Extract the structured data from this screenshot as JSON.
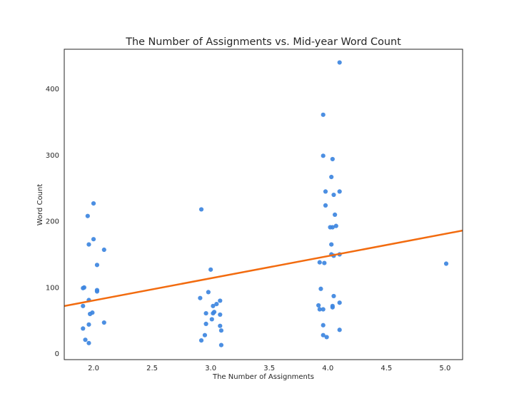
{
  "chart_data": {
    "type": "scatter",
    "title": "The Number of Assignments vs. Mid-year Word Count",
    "xlabel": "The Number of Assignments",
    "ylabel": "Word Count",
    "xlim": [
      1.75,
      5.15
    ],
    "ylim": [
      -9,
      460
    ],
    "xticks": [
      2.0,
      2.5,
      3.0,
      3.5,
      4.0,
      4.5,
      5.0
    ],
    "xtick_labels": [
      "2.0",
      "2.5",
      "3.0",
      "3.5",
      "4.0",
      "4.5",
      "5.0"
    ],
    "yticks": [
      0,
      100,
      200,
      300,
      400
    ],
    "ytick_labels": [
      "0",
      "100",
      "200",
      "300",
      "400"
    ],
    "grid": false,
    "legend": "none",
    "colors": {
      "points": "#3d85e0",
      "trendline": "#f26b0f",
      "axes": "#262626",
      "text": "#262626"
    },
    "series": [
      {
        "kind": "scatter",
        "points": [
          {
            "x": 1.91,
            "y": 38
          },
          {
            "x": 1.93,
            "y": 21
          },
          {
            "x": 1.96,
            "y": 16
          },
          {
            "x": 1.96,
            "y": 44
          },
          {
            "x": 1.97,
            "y": 60
          },
          {
            "x": 1.99,
            "y": 62
          },
          {
            "x": 1.91,
            "y": 72
          },
          {
            "x": 1.96,
            "y": 81
          },
          {
            "x": 2.03,
            "y": 96
          },
          {
            "x": 2.03,
            "y": 94
          },
          {
            "x": 1.92,
            "y": 100
          },
          {
            "x": 1.91,
            "y": 99
          },
          {
            "x": 2.03,
            "y": 134
          },
          {
            "x": 2.09,
            "y": 157
          },
          {
            "x": 1.96,
            "y": 165
          },
          {
            "x": 2.0,
            "y": 173
          },
          {
            "x": 1.95,
            "y": 208
          },
          {
            "x": 2.0,
            "y": 227
          },
          {
            "x": 2.09,
            "y": 47
          },
          {
            "x": 2.92,
            "y": 20
          },
          {
            "x": 2.95,
            "y": 28
          },
          {
            "x": 2.96,
            "y": 45
          },
          {
            "x": 3.01,
            "y": 52
          },
          {
            "x": 2.96,
            "y": 61
          },
          {
            "x": 3.02,
            "y": 61
          },
          {
            "x": 3.03,
            "y": 63
          },
          {
            "x": 3.02,
            "y": 72
          },
          {
            "x": 3.05,
            "y": 75
          },
          {
            "x": 3.08,
            "y": 80
          },
          {
            "x": 2.91,
            "y": 84
          },
          {
            "x": 2.98,
            "y": 93
          },
          {
            "x": 3.08,
            "y": 42
          },
          {
            "x": 3.08,
            "y": 59
          },
          {
            "x": 3.09,
            "y": 35
          },
          {
            "x": 3.09,
            "y": 13
          },
          {
            "x": 3.0,
            "y": 127
          },
          {
            "x": 2.92,
            "y": 218
          },
          {
            "x": 3.92,
            "y": 73
          },
          {
            "x": 3.93,
            "y": 67
          },
          {
            "x": 3.96,
            "y": 67
          },
          {
            "x": 3.96,
            "y": 43
          },
          {
            "x": 3.96,
            "y": 28
          },
          {
            "x": 3.99,
            "y": 25
          },
          {
            "x": 3.94,
            "y": 98
          },
          {
            "x": 3.93,
            "y": 138
          },
          {
            "x": 3.97,
            "y": 137
          },
          {
            "x": 4.03,
            "y": 165
          },
          {
            "x": 4.03,
            "y": 150
          },
          {
            "x": 4.05,
            "y": 148
          },
          {
            "x": 4.1,
            "y": 150
          },
          {
            "x": 4.02,
            "y": 191
          },
          {
            "x": 4.04,
            "y": 191
          },
          {
            "x": 4.07,
            "y": 193
          },
          {
            "x": 4.06,
            "y": 210
          },
          {
            "x": 3.98,
            "y": 224
          },
          {
            "x": 4.05,
            "y": 240
          },
          {
            "x": 3.98,
            "y": 245
          },
          {
            "x": 4.1,
            "y": 245
          },
          {
            "x": 4.03,
            "y": 267
          },
          {
            "x": 4.04,
            "y": 294
          },
          {
            "x": 3.96,
            "y": 299
          },
          {
            "x": 3.96,
            "y": 361
          },
          {
            "x": 4.1,
            "y": 440
          },
          {
            "x": 4.04,
            "y": 70
          },
          {
            "x": 4.04,
            "y": 72
          },
          {
            "x": 4.05,
            "y": 87
          },
          {
            "x": 4.1,
            "y": 77
          },
          {
            "x": 4.1,
            "y": 36
          },
          {
            "x": 5.01,
            "y": 136
          }
        ]
      },
      {
        "kind": "line",
        "x": [
          1.75,
          5.15
        ],
        "y": [
          72,
          186
        ]
      }
    ]
  }
}
